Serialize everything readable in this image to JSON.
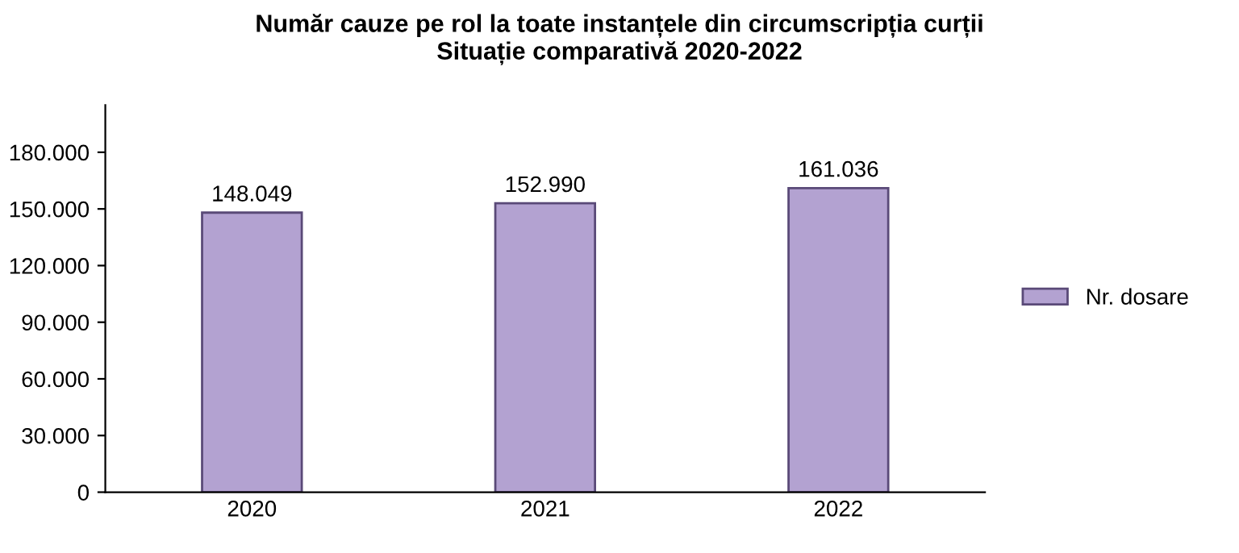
{
  "chart_data": {
    "type": "bar",
    "title": "Număr cauze pe rol la toate instanțele din circumscripția curții\nSituație comparativă 2020-2022",
    "categories": [
      "2020",
      "2021",
      "2022"
    ],
    "series": [
      {
        "name": "Nr. dosare",
        "color": "#b3a2d1",
        "values": [
          148049,
          152990,
          161036
        ],
        "value_labels": [
          "148.049",
          "152.990",
          "161.036"
        ]
      }
    ],
    "ylim": [
      0,
      205000
    ],
    "yticks": [
      {
        "value": 0,
        "label": "0"
      },
      {
        "value": 30000,
        "label": "30.000"
      },
      {
        "value": 60000,
        "label": "60.000"
      },
      {
        "value": 90000,
        "label": "90.000"
      },
      {
        "value": 120000,
        "label": "120.000"
      },
      {
        "value": 150000,
        "label": "150.000"
      },
      {
        "value": 180000,
        "label": "180.000"
      }
    ],
    "legend": "right",
    "grid": false
  }
}
